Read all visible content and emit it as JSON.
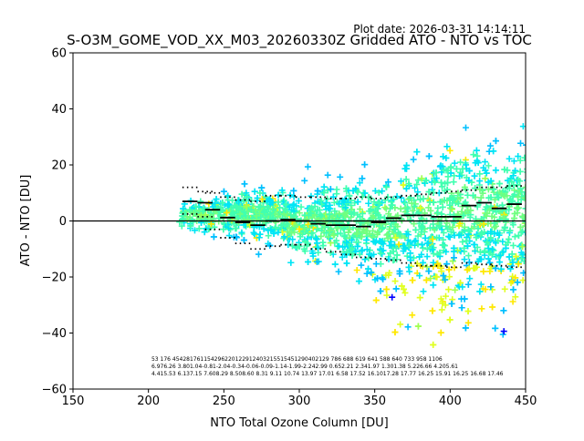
{
  "plot_date": "Plot date: 2026-03-31 14:14:11",
  "chart_data": {
    "type": "scatter",
    "title": "S-O3M_GOME_VOD_XX_M03_20260330Z Gridded ATO - NTO vs TOC",
    "xlabel": "NTO Total Ozone Column [DU]",
    "ylabel": "ATO - NTO [DU]",
    "xlim": [
      150,
      450
    ],
    "ylim": [
      -60,
      60
    ],
    "xticks": [
      "150",
      "200",
      "250",
      "300",
      "350",
      "400",
      "450"
    ],
    "yticks": [
      "-60",
      "-40",
      "-20",
      "0",
      "20",
      "40",
      "60"
    ],
    "grid": false,
    "zero_line": 0,
    "marker": "+",
    "point_colors": [
      "#0000ff",
      "#00c0ff",
      "#00e5f5",
      "#40ffb0",
      "#70ff80",
      "#a0ff50",
      "#e0ff20",
      "#ffe800"
    ],
    "bin_centers": [
      227.5,
      237.5,
      242.5,
      252.5,
      262.5,
      272.5,
      282.5,
      292.5,
      302.5,
      312.5,
      322.5,
      332.5,
      342.5,
      352.5,
      362.5,
      372.5,
      382.5,
      392.5,
      402.5,
      412.5,
      422.5,
      432.5,
      442.5
    ],
    "bin_mean": [
      7.0,
      6.5,
      4.0,
      1.2,
      -0.5,
      -1.5,
      0.0,
      0.5,
      0.0,
      -1.0,
      -1.5,
      -1.5,
      -2.0,
      -0.5,
      1.0,
      2.0,
      2.0,
      1.5,
      1.5,
      5.5,
      6.5,
      4.5,
      6.0
    ],
    "bin_upper": [
      12.0,
      10.5,
      10.0,
      8.5,
      7.5,
      7.0,
      9.0,
      9.0,
      8.5,
      8.5,
      8.0,
      8.0,
      8.5,
      8.0,
      8.5,
      9.0,
      9.5,
      10.0,
      10.5,
      11.0,
      12.0,
      12.0,
      12.5
    ],
    "bin_lower": [
      2.5,
      1.5,
      -3.0,
      -6.0,
      -8.0,
      -10.0,
      -9.0,
      -8.5,
      -8.5,
      -10.0,
      -11.0,
      -12.0,
      -13.0,
      -13.5,
      -14.0,
      -15.0,
      -16.0,
      -16.0,
      -16.5,
      -15.0,
      -15.5,
      -16.0,
      -16.5
    ],
    "stats_rows": [
      "53  176  454281761154296220122912403215515451290402129  786  688 619  641 588  640  733  958 1106",
      "6.976.26 3.801.04-0.81-2.04-0.34-0.06-0.09-1.14-1.99-2.242.99 0.652.21 2.341.97 1.301.38 5.226.66 4.205.61",
      "4.415.53 6.137.15 7.608.29 8.508.60 8.31 9.11 10.74 13.97 17.01 6.58 17.52 16.1017.28 17.77 16.25 15.91 16.25 16.68 17.46"
    ]
  }
}
